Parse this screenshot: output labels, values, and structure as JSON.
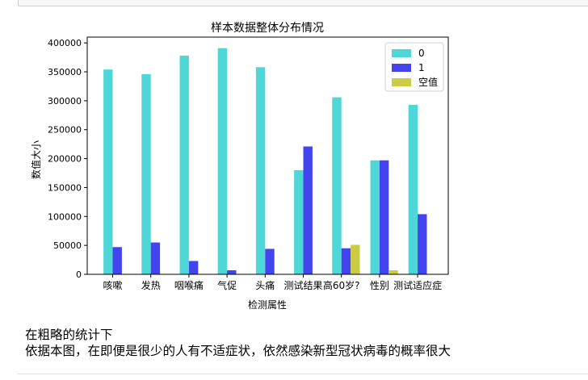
{
  "chart_data": {
    "type": "bar",
    "title": "样本数据整体分布情况",
    "xlabel": "检测属性",
    "ylabel": "数值大小",
    "categories": [
      "咳嗽",
      "发热",
      "咽喉痛",
      "气促",
      "头痛",
      "测试结果",
      "高60岁?",
      "性别",
      "测试适应症"
    ],
    "series": [
      {
        "name": "0",
        "color": "#4fd6d6",
        "values": [
          354000,
          346000,
          378000,
          391000,
          358000,
          180000,
          306000,
          197000,
          293000
        ]
      },
      {
        "name": "1",
        "color": "#4444ee",
        "values": [
          47000,
          55000,
          23000,
          7000,
          44000,
          221000,
          45000,
          197000,
          104000
        ]
      },
      {
        "name": "空值",
        "color": "#cccc44",
        "values": [
          0,
          0,
          0,
          0,
          0,
          0,
          51000,
          7000,
          0
        ]
      }
    ],
    "ylim": [
      0,
      410000
    ],
    "yticks": [
      0,
      50000,
      100000,
      150000,
      200000,
      250000,
      300000,
      350000,
      400000
    ],
    "legend_position": "top-right",
    "grid": false
  },
  "markdown": {
    "line1": "在粗略的统计下",
    "line2": "依据本图，在即便是很少的人有不适症状，依然感染新型冠状病毒的概率很大"
  }
}
